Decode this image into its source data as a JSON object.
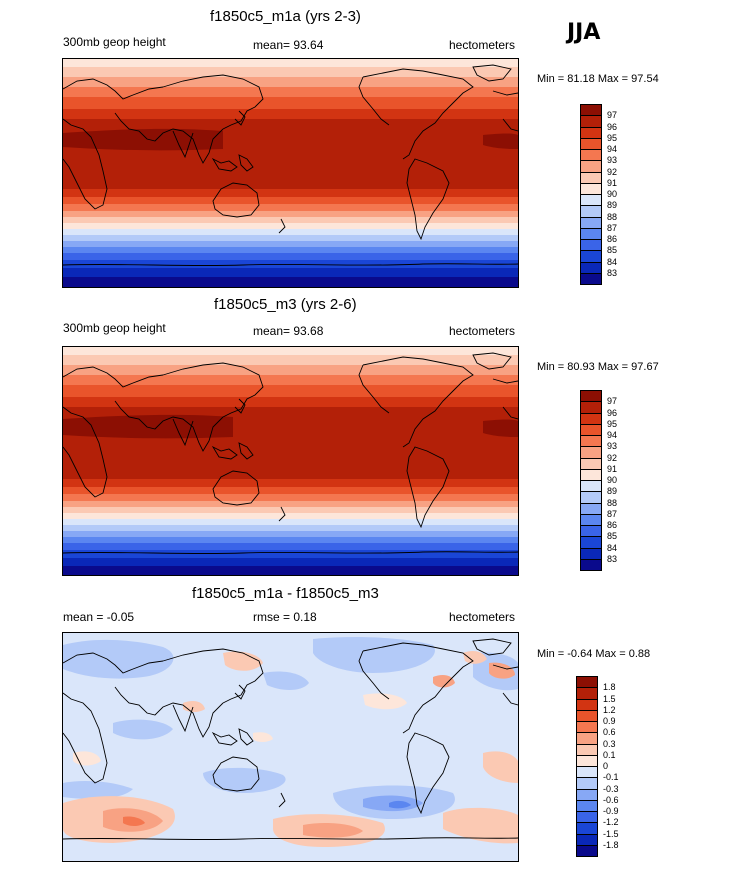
{
  "season": "JJA",
  "panels": [
    {
      "id": "p1",
      "title": "f1850c5_m1a (yrs 2-3)",
      "left_label": "300mb geop height",
      "center_label": "mean=  93.64",
      "right_label": "hectometers",
      "minmax": "Min =  81.18 Max =  97.54",
      "palette": [
        "#0a0a8c",
        "#0a28b8",
        "#1a46d6",
        "#3a64e8",
        "#5b86f0",
        "#87a8f5",
        "#b3caf8",
        "#dae6fa",
        "#fde6da",
        "#fbc9b3",
        "#f8a283",
        "#f47750",
        "#e9542b",
        "#d23412",
        "#b32008",
        "#8c0f03"
      ],
      "ticks": [
        "97",
        "96",
        "95",
        "94",
        "93",
        "92",
        "91",
        "90",
        "89",
        "88",
        "87",
        "86",
        "85",
        "84",
        "83"
      ]
    },
    {
      "id": "p2",
      "title": "f1850c5_m3 (yrs 2-6)",
      "left_label": "300mb geop height",
      "center_label": "mean=  93.68",
      "right_label": "hectometers",
      "minmax": "Min =  80.93 Max =  97.67",
      "palette": [
        "#0a0a8c",
        "#0a28b8",
        "#1a46d6",
        "#3a64e8",
        "#5b86f0",
        "#87a8f5",
        "#b3caf8",
        "#dae6fa",
        "#fde6da",
        "#fbc9b3",
        "#f8a283",
        "#f47750",
        "#e9542b",
        "#d23412",
        "#b32008",
        "#8c0f03"
      ],
      "ticks": [
        "97",
        "96",
        "95",
        "94",
        "93",
        "92",
        "91",
        "90",
        "89",
        "88",
        "87",
        "86",
        "85",
        "84",
        "83"
      ]
    },
    {
      "id": "p3",
      "title": "f1850c5_m1a - f1850c5_m3",
      "left_label": "mean =  -0.05",
      "center_label": "rmse =   0.18",
      "right_label": "hectometers",
      "minmax": "Min =  -0.64 Max =   0.88",
      "palette": [
        "#0a0a8c",
        "#0a28b8",
        "#1a46d6",
        "#3a64e8",
        "#5b86f0",
        "#87a8f5",
        "#b3caf8",
        "#dae6fa",
        "#fde6da",
        "#fbc9b3",
        "#f8a283",
        "#f47750",
        "#e9542b",
        "#d23412",
        "#b32008",
        "#8c0f03"
      ],
      "ticks": [
        "1.8",
        "1.5",
        "1.2",
        "0.9",
        "0.6",
        "0.3",
        "0.1",
        "0",
        "-0.1",
        "-0.3",
        "-0.6",
        "-0.9",
        "-1.2",
        "-1.5",
        "-1.8"
      ]
    }
  ]
}
